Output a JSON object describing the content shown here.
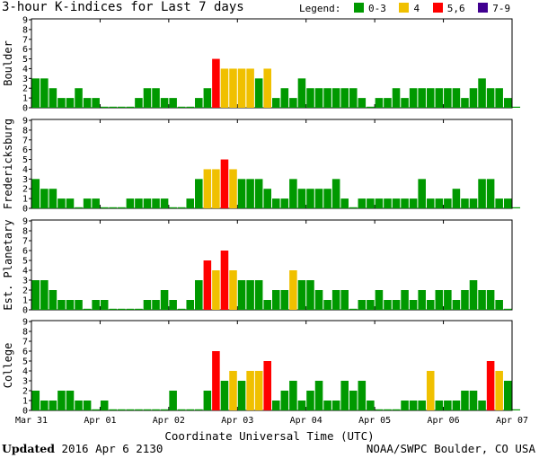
{
  "colors": {
    "k0_3": "#009900",
    "k4": "#f0c000",
    "k5_6": "#ff0000",
    "k7_9": "#400090"
  },
  "chart_data": {
    "type": "bar",
    "title": "3-hour K-indices for Last 7 days",
    "legend": {
      "title": "Legend:",
      "placement": "top-right",
      "entries": [
        {
          "label": "0-3",
          "color": "#009900"
        },
        {
          "label": "4",
          "color": "#f0c000"
        },
        {
          "label": "5,6",
          "color": "#ff0000"
        },
        {
          "label": "7-9",
          "color": "#400090"
        }
      ]
    },
    "xlabel": "Coordinate Universal Time (UTC)",
    "x_tick_labels": [
      "Mar 31",
      "Apr 01",
      "Apr 02",
      "Apr 03",
      "Apr 04",
      "Apr 05",
      "Apr 06",
      "Apr 07"
    ],
    "y_tick_labels": [
      "0",
      "1",
      "2",
      "3",
      "4",
      "5",
      "6",
      "7",
      "8",
      "9"
    ],
    "ylim": [
      0,
      9
    ],
    "grid": false,
    "bins_per_day": 8,
    "days": 7,
    "series": [
      {
        "name": "Boulder",
        "values": [
          3,
          3,
          2,
          1,
          1,
          2,
          1,
          1,
          0,
          0,
          0,
          0,
          1,
          2,
          2,
          1,
          1,
          0,
          0,
          1,
          2,
          5,
          4,
          4,
          4,
          4,
          3,
          4,
          1,
          2,
          1,
          3,
          2,
          2,
          2,
          2,
          2,
          2,
          1,
          0,
          1,
          1,
          2,
          1,
          2,
          2,
          2,
          2,
          2,
          2,
          1,
          2,
          3,
          2,
          2,
          1,
          0
        ]
      },
      {
        "name": "Fredericksburg",
        "values": [
          3,
          2,
          2,
          1,
          1,
          0,
          1,
          1,
          0,
          0,
          0,
          1,
          1,
          1,
          1,
          1,
          0,
          0,
          1,
          3,
          4,
          4,
          5,
          4,
          3,
          3,
          3,
          2,
          1,
          1,
          3,
          2,
          2,
          2,
          2,
          3,
          1,
          0,
          1,
          1,
          1,
          1,
          1,
          1,
          1,
          3,
          1,
          1,
          1,
          2,
          1,
          1,
          3,
          3,
          1,
          1,
          0
        ]
      },
      {
        "name": "Est. Planetary",
        "values": [
          3,
          3,
          2,
          1,
          1,
          1,
          0,
          1,
          1,
          0,
          0,
          0,
          0,
          1,
          1,
          2,
          1,
          0,
          1,
          3,
          5,
          4,
          6,
          4,
          3,
          3,
          3,
          1,
          2,
          2,
          4,
          3,
          3,
          2,
          1,
          2,
          2,
          0,
          1,
          1,
          2,
          1,
          1,
          2,
          1,
          2,
          1,
          2,
          2,
          1,
          2,
          3,
          2,
          2,
          1,
          0
        ]
      },
      {
        "name": "College",
        "values": [
          2,
          1,
          1,
          2,
          2,
          1,
          1,
          0,
          1,
          0,
          0,
          0,
          0,
          0,
          0,
          0,
          2,
          0,
          0,
          0,
          2,
          6,
          3,
          4,
          3,
          4,
          4,
          5,
          1,
          2,
          3,
          1,
          2,
          3,
          1,
          1,
          3,
          2,
          3,
          1,
          0,
          0,
          0,
          1,
          1,
          1,
          4,
          1,
          1,
          1,
          2,
          2,
          1,
          5,
          4,
          3,
          0
        ]
      }
    ]
  },
  "footer": {
    "updated_label": "Updated",
    "updated_value": "2016 Apr  6 2130",
    "credit": "NOAA/SWPC Boulder, CO USA"
  }
}
